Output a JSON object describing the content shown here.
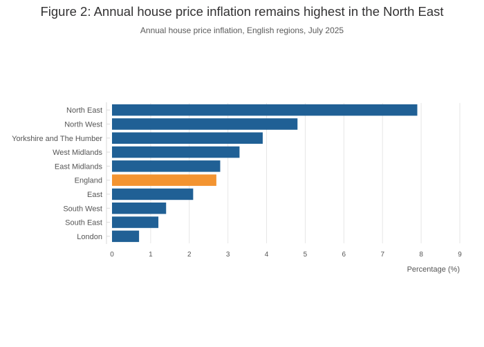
{
  "title": "Figure 2: Annual house price inflation remains highest in the North East",
  "subtitle": "Annual house price inflation, English regions, July 2025",
  "colors": {
    "default_bar": "#206095",
    "highlight_bar": "#f39431",
    "grid": "#e6e6e6"
  },
  "chart_data": {
    "type": "bar",
    "orientation": "horizontal",
    "categories": [
      "North East",
      "North West",
      "Yorkshire and The Humber",
      "West Midlands",
      "East Midlands",
      "England",
      "East",
      "South West",
      "South East",
      "London"
    ],
    "values": [
      7.9,
      4.8,
      3.9,
      3.3,
      2.8,
      2.7,
      2.1,
      1.4,
      1.2,
      0.7
    ],
    "highlight": [
      "England"
    ],
    "xlabel": "Percentage (%)",
    "ylabel": "",
    "xlim": [
      0,
      9
    ],
    "xticks": [
      0,
      1,
      2,
      3,
      4,
      5,
      6,
      7,
      8,
      9
    ],
    "grid": true
  }
}
